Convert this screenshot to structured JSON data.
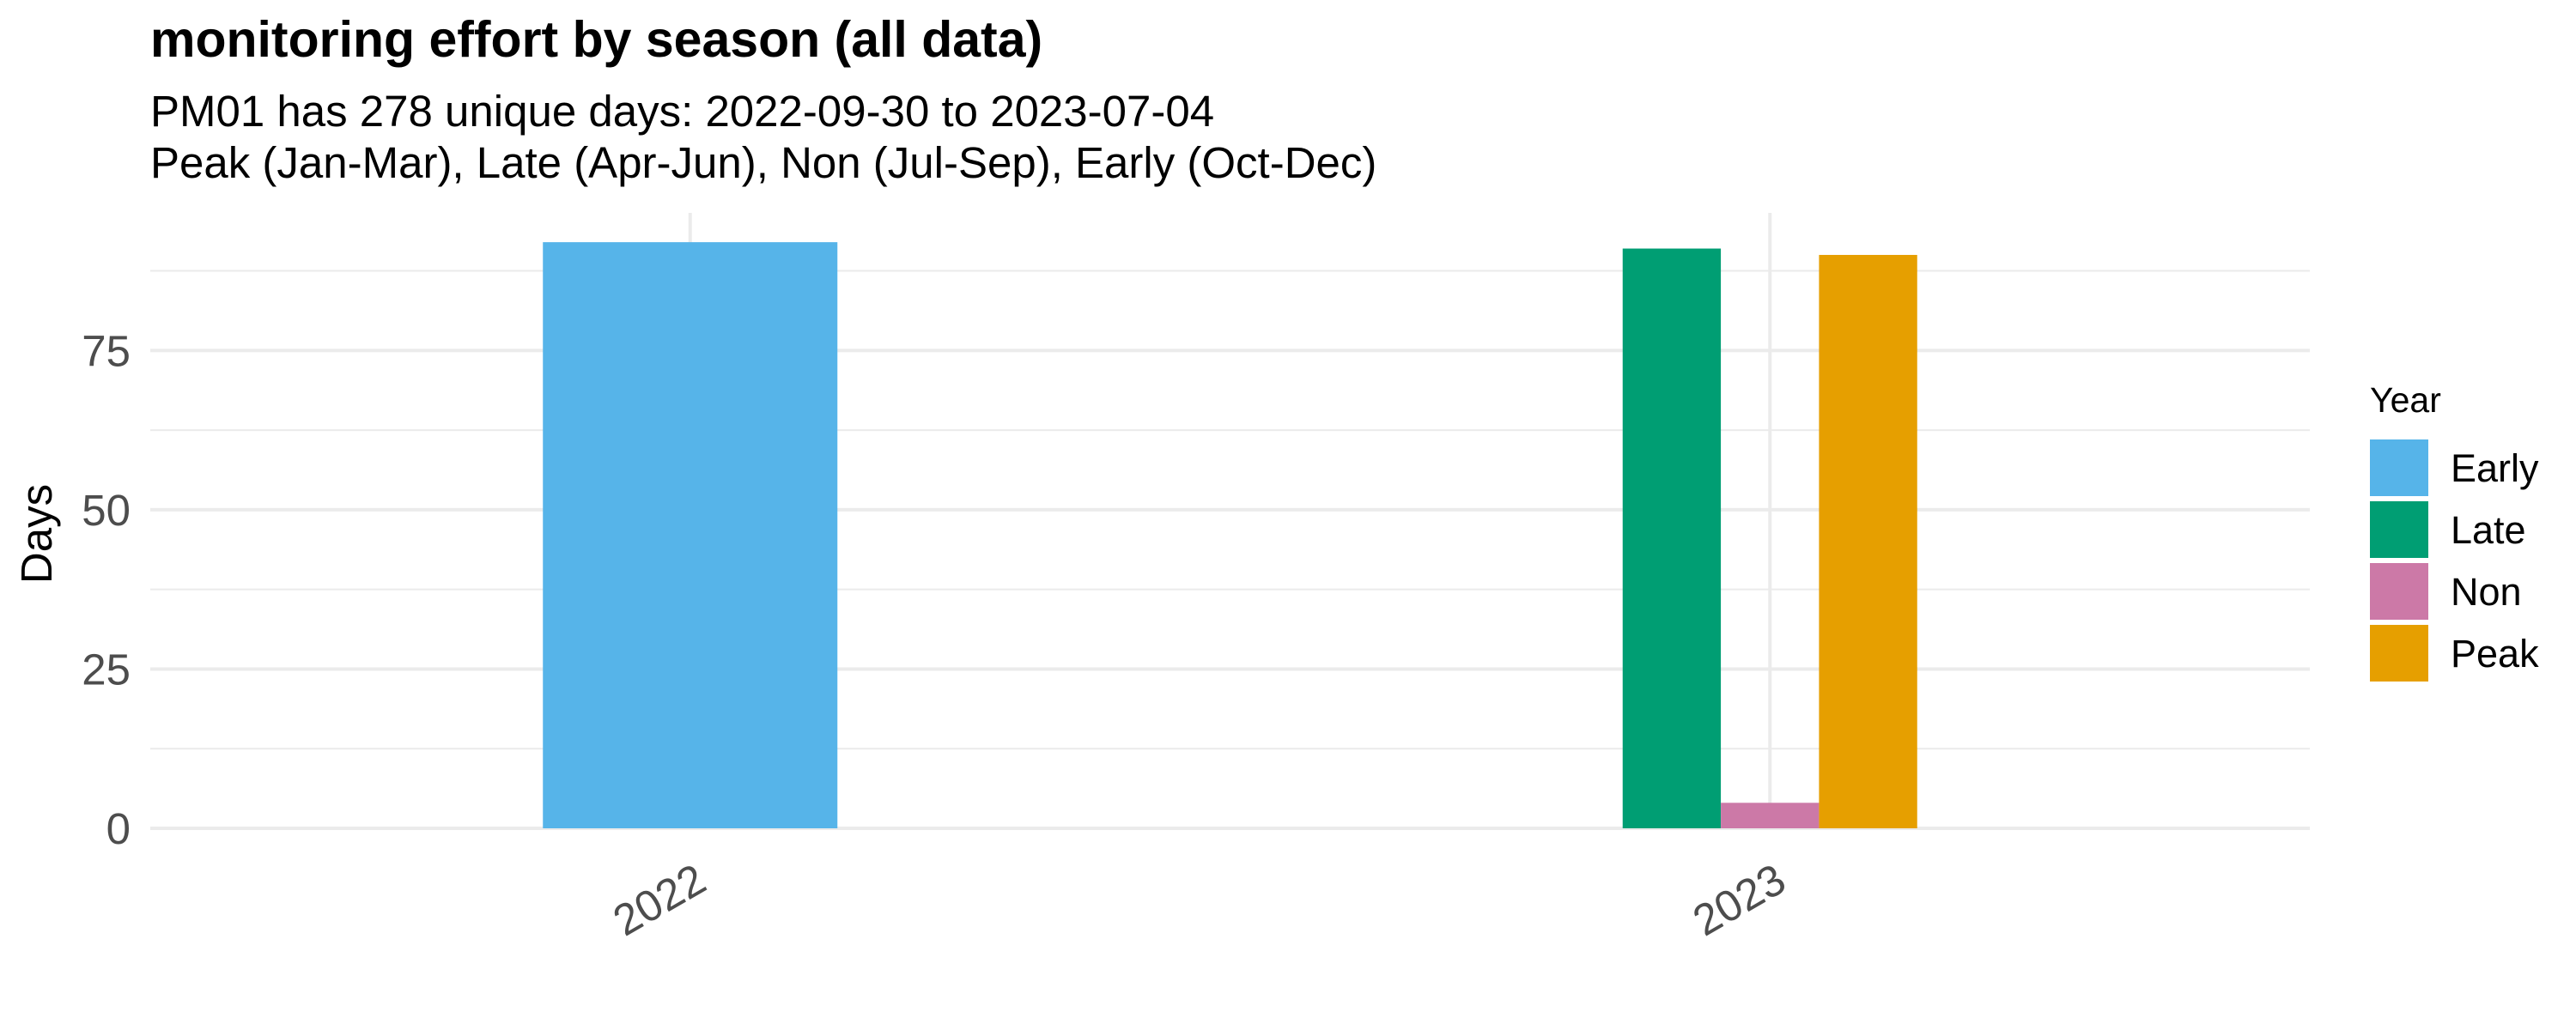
{
  "chart_data": {
    "type": "bar",
    "title": "monitoring effort by season (all data)",
    "subtitle_lines": [
      "PM01 has 278 unique days: 2022-09-30 to 2023-07-04",
      "Peak (Jan-Mar), Late (Apr-Jun), Non (Jul-Sep), Early (Oct-Dec)"
    ],
    "xlabel": "",
    "ylabel": "Days",
    "categories": [
      "2022",
      "2023"
    ],
    "series": [
      {
        "name": "Early",
        "color": "#56B4E9",
        "values": [
          92,
          null
        ]
      },
      {
        "name": "Late",
        "color": "#009E73",
        "values": [
          null,
          91
        ]
      },
      {
        "name": "Non",
        "color": "#CC79A7",
        "values": [
          null,
          4
        ]
      },
      {
        "name": "Peak",
        "color": "#E69F00",
        "values": [
          null,
          90
        ]
      }
    ],
    "ylim": [
      0,
      96.6
    ],
    "yticks": [
      0,
      25,
      50,
      75
    ],
    "grid": true,
    "legend": {
      "title": "Year",
      "position": "right"
    }
  }
}
